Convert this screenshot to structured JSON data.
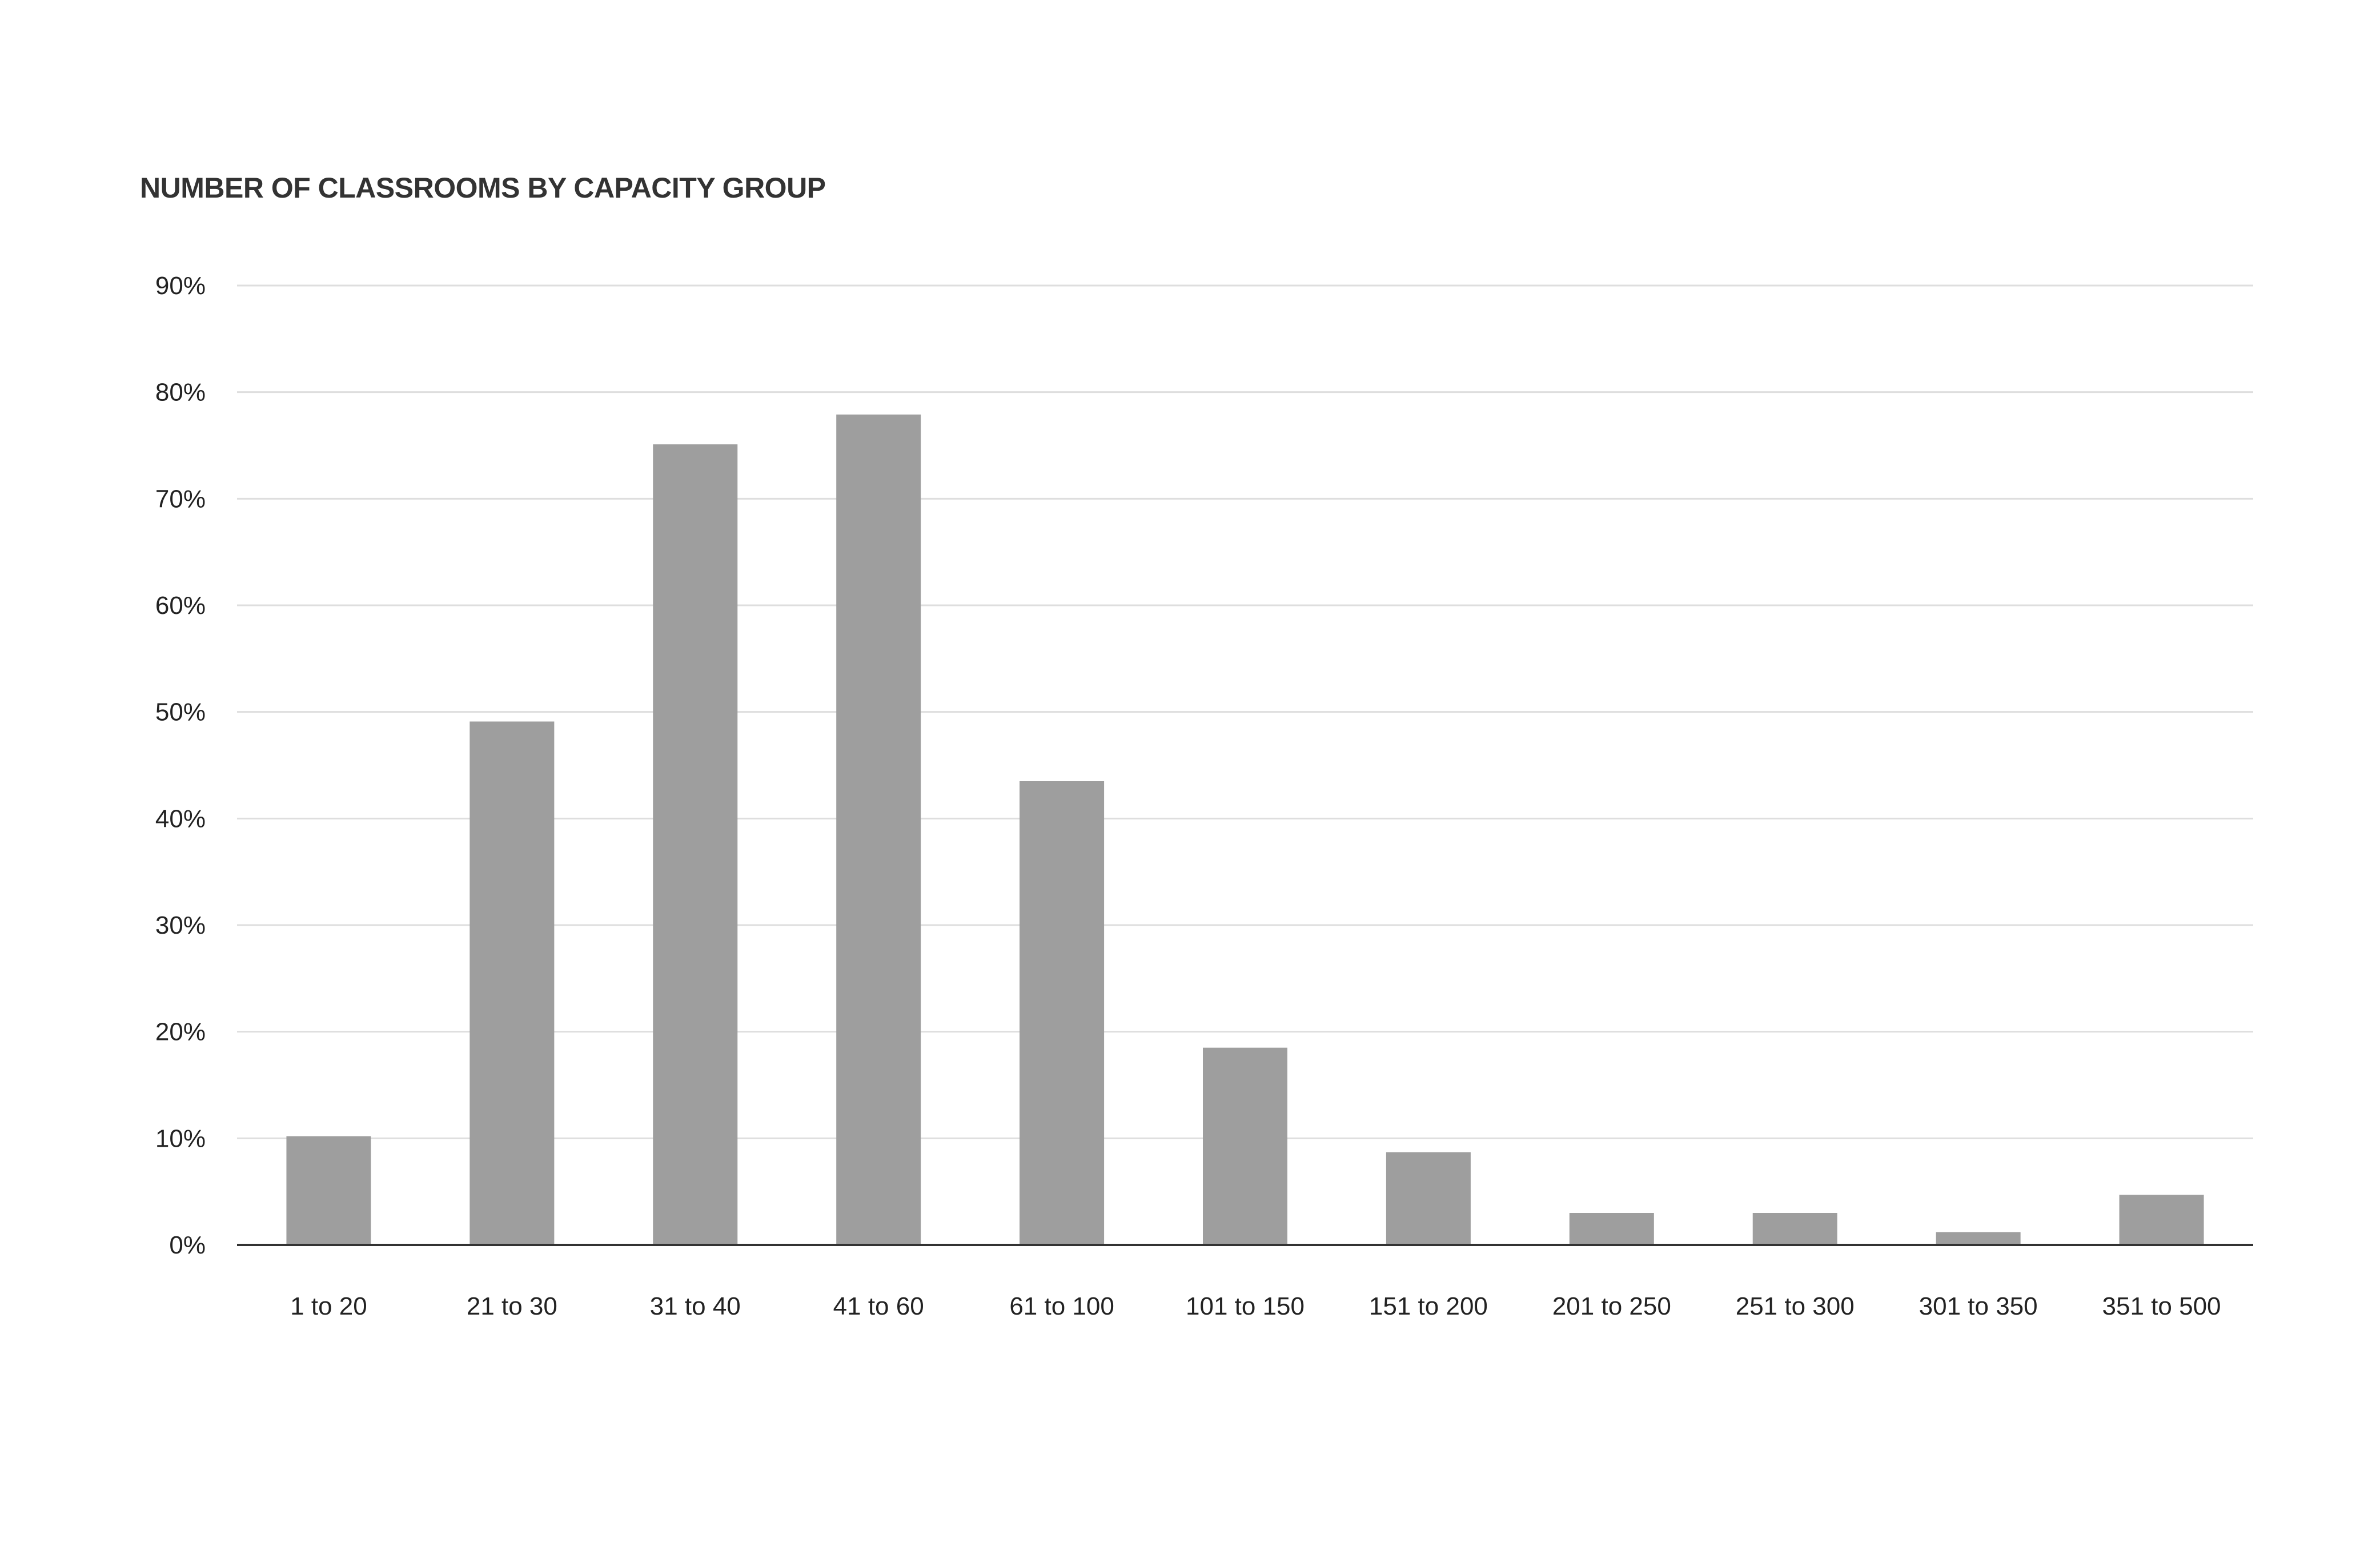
{
  "chart_data": {
    "type": "bar",
    "title": "NUMBER OF CLASSROOMS BY CAPACITY GROUP",
    "xlabel": "",
    "ylabel": "",
    "categories": [
      "1 to 20",
      "21 to 30",
      "31 to 40",
      "41 to 60",
      "61 to 100",
      "101 to 150",
      "151 to 200",
      "201 to 250",
      "251 to 300",
      "301 to 350",
      "351 to 500"
    ],
    "values": [
      10.2,
      49.1,
      75.1,
      77.9,
      43.5,
      18.5,
      8.7,
      3.0,
      3.0,
      1.2,
      4.7
    ],
    "ylim": [
      0,
      90
    ],
    "yticks": [
      "0%",
      "10%",
      "20%",
      "30%",
      "40%",
      "50%",
      "60%",
      "70%",
      "80%",
      "90%"
    ],
    "grid": true,
    "legend": "none",
    "colors": {
      "bar": "#9e9e9e",
      "grid": "#dedede",
      "axis": "#333333",
      "text": "#222222",
      "title": "#333333"
    }
  }
}
